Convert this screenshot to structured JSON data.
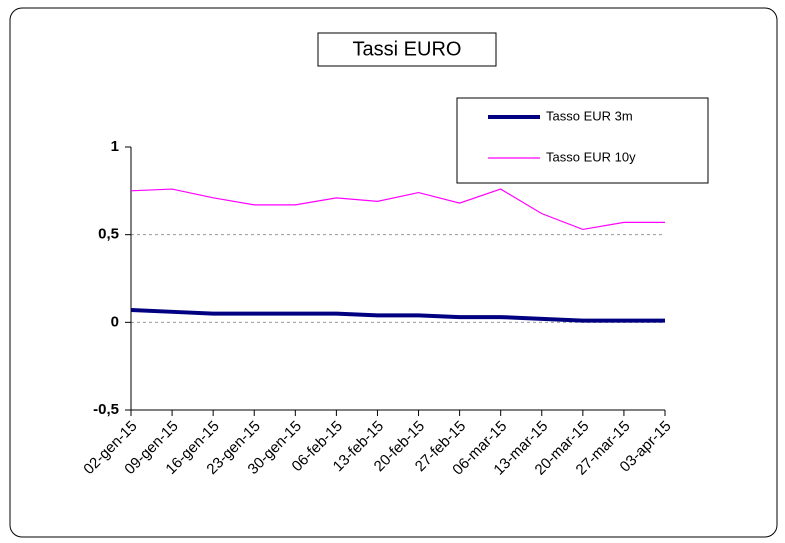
{
  "chart_data": {
    "type": "line",
    "title": "Tassi EURO",
    "categories": [
      "02-gen-15",
      "09-gen-15",
      "16-gen-15",
      "23-gen-15",
      "30-gen-15",
      "06-feb-15",
      "13-feb-15",
      "20-feb-15",
      "27-feb-15",
      "06-mar-15",
      "13-mar-15",
      "20-mar-15",
      "27-mar-15",
      "03-apr-15"
    ],
    "series": [
      {
        "name": "Tasso EUR 3m",
        "color": "#000080",
        "values": [
          0.07,
          0.06,
          0.05,
          0.05,
          0.05,
          0.05,
          0.04,
          0.04,
          0.03,
          0.03,
          0.02,
          0.01,
          0.01,
          0.01
        ]
      },
      {
        "name": "Tasso EUR 10y",
        "color": "#ff00ff",
        "values": [
          0.75,
          0.76,
          0.71,
          0.67,
          0.67,
          0.71,
          0.69,
          0.74,
          0.68,
          0.76,
          0.62,
          0.53,
          0.57,
          0.57
        ]
      }
    ],
    "ylim": [
      -0.5,
      1
    ],
    "yticks": [
      {
        "value": -0.5,
        "label": "-0,5"
      },
      0,
      {
        "value": 0.5,
        "label": "0,5"
      },
      1
    ],
    "grid": true,
    "legend": "top-right"
  }
}
